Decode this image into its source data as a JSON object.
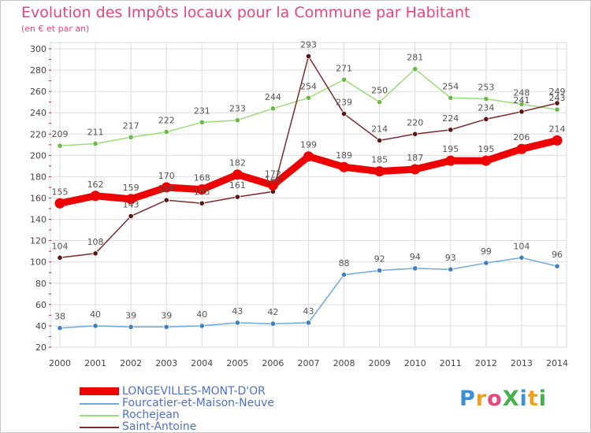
{
  "title": "Evolution des Impôts locaux pour la Commune par Habitant",
  "subtitle": "(en € et par an)",
  "logo": "ProXiti",
  "colors": {
    "title": "#e8467a",
    "grid": "#dcdcdc",
    "axis_text": "#444444",
    "label_text": "#555555"
  },
  "chart_data": {
    "type": "line",
    "x": [
      2000,
      2001,
      2002,
      2003,
      2004,
      2005,
      2006,
      2007,
      2008,
      2009,
      2010,
      2011,
      2012,
      2013,
      2014
    ],
    "ylim": [
      20,
      300
    ],
    "yticks": [
      20,
      40,
      60,
      80,
      100,
      120,
      140,
      160,
      180,
      200,
      220,
      240,
      260,
      280,
      300
    ],
    "grid": true,
    "legend_position": "bottom-left",
    "series": [
      {
        "name": "LONGEVILLES-MONT-D'OR",
        "color": "#ee0000",
        "marker_color": "#ee0000",
        "values": [
          155,
          162,
          159,
          170,
          168,
          182,
          172,
          199,
          189,
          185,
          187,
          195,
          195,
          206,
          214
        ]
      },
      {
        "name": "Fourcatier-et-Maison-Neuve",
        "color": "#6fa8dc",
        "marker_color": "#3d7fc1",
        "values": [
          38,
          40,
          39,
          39,
          40,
          43,
          42,
          43,
          88,
          92,
          94,
          93,
          99,
          104,
          96
        ]
      },
      {
        "name": "Rochejean",
        "color": "#99dd77",
        "marker_color": "#66bb44",
        "values": [
          209,
          211,
          217,
          222,
          231,
          233,
          244,
          254,
          271,
          250,
          281,
          254,
          253,
          248,
          243
        ]
      },
      {
        "name": "Saint-Antoine",
        "color": "#7a2a2a",
        "marker_color": "#5a1515",
        "values": [
          104,
          108,
          143,
          158,
          155,
          161,
          166,
          293,
          239,
          214,
          220,
          224,
          234,
          241,
          249
        ]
      }
    ]
  }
}
